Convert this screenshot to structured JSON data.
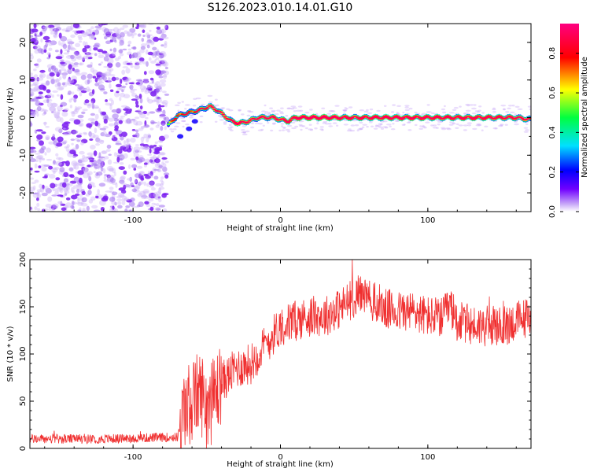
{
  "figure_title": "S126.2023.010.14.01.G10",
  "chart_data": [
    {
      "type": "heatmap",
      "title": "",
      "xlabel": "Height of straight line (km)",
      "ylabel": "Frequency (Hz)",
      "xlim": [
        -170,
        170
      ],
      "ylim": [
        -25,
        25
      ],
      "xticks": [
        -100,
        0,
        100
      ],
      "yticks": [
        -20,
        -10,
        0,
        10,
        20
      ],
      "colorbar": {
        "label": "Normalized spectral amplitude",
        "range": [
          0.0,
          0.95
        ],
        "ticks": [
          "0.0",
          "0.2",
          "0.4",
          "0.6",
          "0.8"
        ],
        "colors": [
          "#ffffff",
          "#c8a8f8",
          "#7000ff",
          "#0000ff",
          "#00e0ff",
          "#00ff40",
          "#ffff00",
          "#ff0000",
          "#ff0080"
        ]
      },
      "noise_region": {
        "x_from": -170,
        "x_to": -77,
        "freq_from": -25,
        "freq_to": 25,
        "typical_amplitude": 0.05
      },
      "ridge_points": [
        {
          "x": -76,
          "freq": -2,
          "amp": 0.35
        },
        {
          "x": -70,
          "freq": 0.5,
          "amp": 0.45
        },
        {
          "x": -60,
          "freq": 1.5,
          "amp": 0.45
        },
        {
          "x": -55,
          "freq": 2,
          "amp": 0.5
        },
        {
          "x": -48,
          "freq": 3,
          "amp": 0.6
        },
        {
          "x": -43,
          "freq": 2,
          "amp": 0.6
        },
        {
          "x": -38,
          "freq": 0.5,
          "amp": 0.6
        },
        {
          "x": -33,
          "freq": -1,
          "amp": 0.6
        },
        {
          "x": -28,
          "freq": -1.5,
          "amp": 0.85
        },
        {
          "x": -22,
          "freq": -1,
          "amp": 0.6
        },
        {
          "x": -15,
          "freq": 0,
          "amp": 0.6
        },
        {
          "x": -5,
          "freq": 0,
          "amp": 0.65
        },
        {
          "x": 5,
          "freq": -1,
          "amp": 0.7
        },
        {
          "x": 10,
          "freq": 0,
          "amp": 0.85
        },
        {
          "x": 30,
          "freq": 0,
          "amp": 0.9
        },
        {
          "x": 50,
          "freq": 0,
          "amp": 0.7
        },
        {
          "x": 80,
          "freq": 0,
          "amp": 0.8
        },
        {
          "x": 110,
          "freq": 0,
          "amp": 0.75
        },
        {
          "x": 140,
          "freq": 0,
          "amp": 0.75
        },
        {
          "x": 160,
          "freq": 0,
          "amp": 0.65
        },
        {
          "x": 170,
          "freq": -0.5,
          "amp": 0.55
        }
      ],
      "side_streak": [
        {
          "x": -68,
          "freq": -5
        },
        {
          "x": -62,
          "freq": -3
        },
        {
          "x": -58,
          "freq": -1
        }
      ]
    },
    {
      "type": "line",
      "title": "",
      "xlabel": "Height of straight line (km)",
      "ylabel": "SNR (10 * v/v)",
      "xlim": [
        -170,
        170
      ],
      "ylim": [
        0,
        200
      ],
      "xticks": [
        -100,
        0,
        100
      ],
      "yticks": [
        0,
        50,
        100,
        150,
        200
      ],
      "color": "#f03030",
      "series": [
        {
          "values": [
            {
              "x": -170,
              "y": 10
            },
            {
              "x": -120,
              "y": 10
            },
            {
              "x": -70,
              "y": 12
            },
            {
              "x": -65,
              "y": 40
            },
            {
              "x": -55,
              "y": 60
            },
            {
              "x": -48,
              "y": 45
            },
            {
              "x": -40,
              "y": 70
            },
            {
              "x": -30,
              "y": 85
            },
            {
              "x": -20,
              "y": 90
            },
            {
              "x": -10,
              "y": 110
            },
            {
              "x": 0,
              "y": 130
            },
            {
              "x": 10,
              "y": 135
            },
            {
              "x": 20,
              "y": 140
            },
            {
              "x": 30,
              "y": 140
            },
            {
              "x": 40,
              "y": 148
            },
            {
              "x": 50,
              "y": 160
            },
            {
              "x": 55,
              "y": 165
            },
            {
              "x": 60,
              "y": 158
            },
            {
              "x": 70,
              "y": 148
            },
            {
              "x": 80,
              "y": 145
            },
            {
              "x": 90,
              "y": 145
            },
            {
              "x": 100,
              "y": 140
            },
            {
              "x": 110,
              "y": 138
            },
            {
              "x": 115,
              "y": 150
            },
            {
              "x": 120,
              "y": 135
            },
            {
              "x": 130,
              "y": 130
            },
            {
              "x": 140,
              "y": 130
            },
            {
              "x": 150,
              "y": 128
            },
            {
              "x": 160,
              "y": 135
            },
            {
              "x": 170,
              "y": 140
            }
          ]
        }
      ]
    }
  ]
}
